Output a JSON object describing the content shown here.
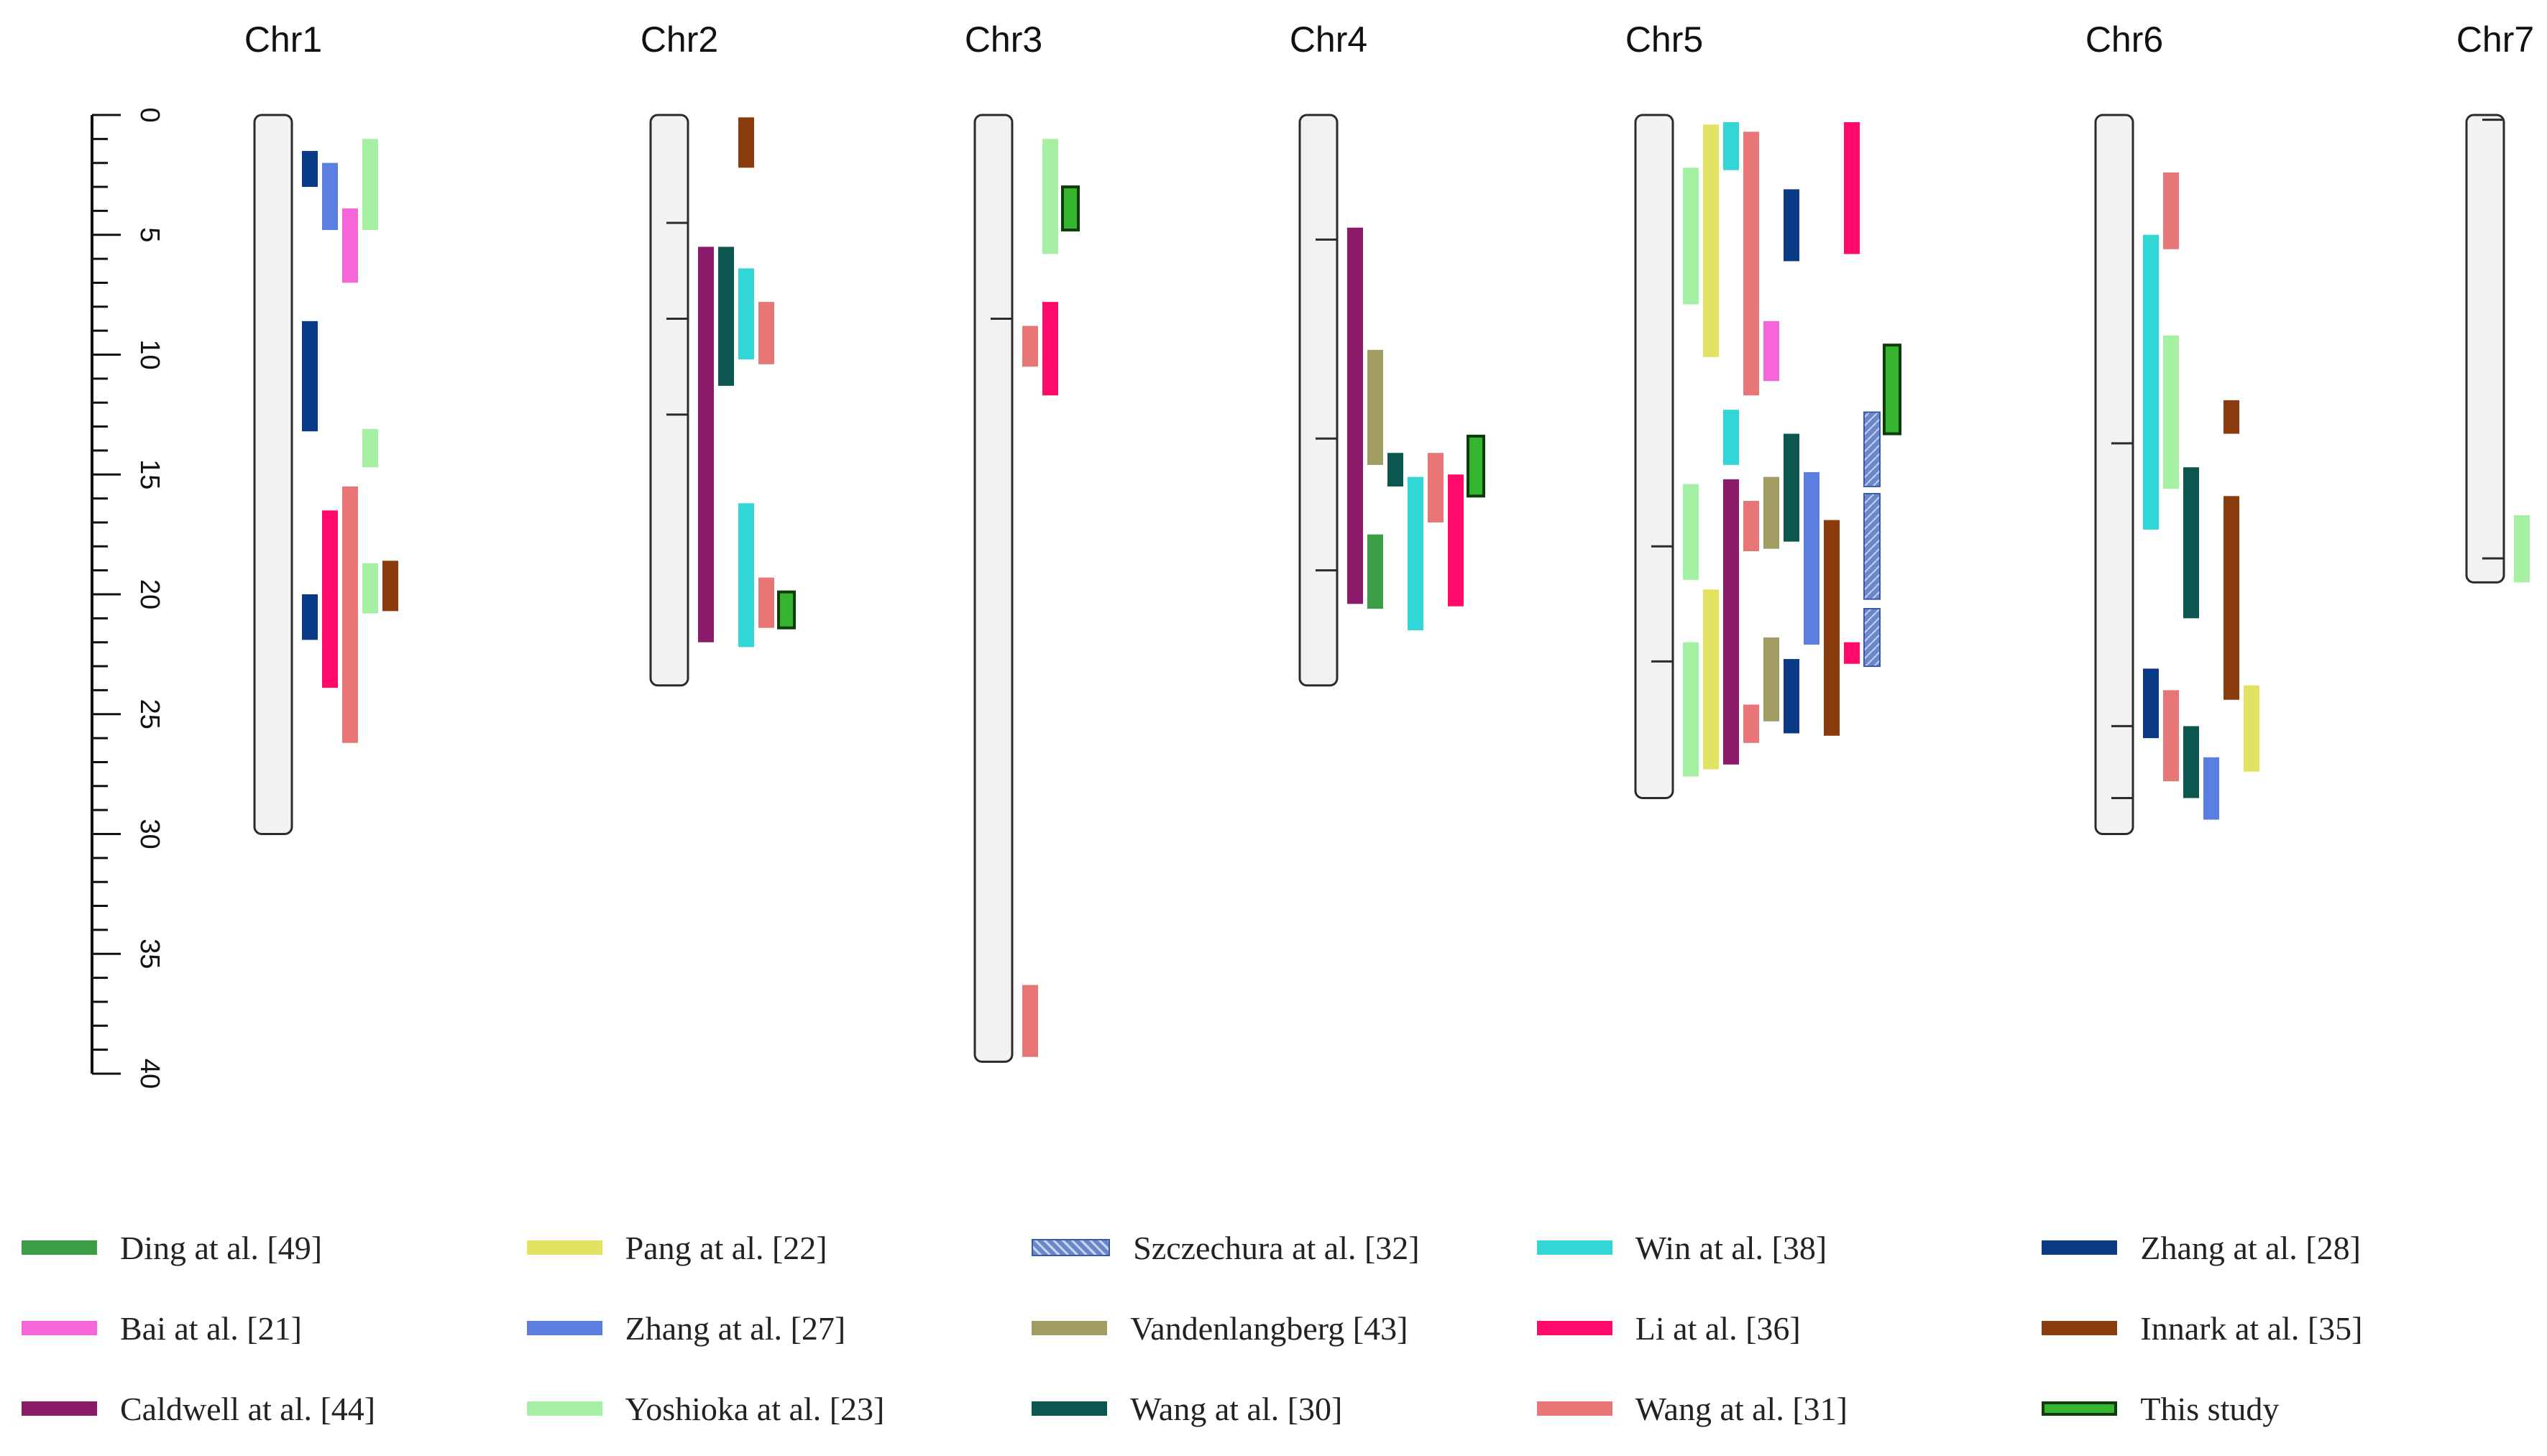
{
  "chart_data": {
    "type": "diagram",
    "title": "",
    "scale": {
      "unit": "Mb",
      "min": 0,
      "max": 40,
      "major_ticks": [
        0,
        5,
        10,
        15,
        20,
        25,
        30,
        35,
        40
      ],
      "minor_step": 1
    },
    "chromosomes": [
      {
        "name": "Chr1",
        "length": 30,
        "marks": []
      },
      {
        "name": "Chr2",
        "length": 23.8,
        "marks": [
          4.5,
          8.5,
          12.5
        ]
      },
      {
        "name": "Chr3",
        "length": 39.5,
        "marks": [
          8.5
        ]
      },
      {
        "name": "Chr4",
        "length": 23.8,
        "marks": [
          5.2,
          13.5,
          19
        ]
      },
      {
        "name": "Chr5",
        "length": 28.5,
        "marks": [
          18,
          22.8
        ]
      },
      {
        "name": "Chr6",
        "length": 30,
        "marks": [
          13.7,
          25.5,
          28.5
        ]
      },
      {
        "name": "Chr7",
        "length": 19.5,
        "marks": [
          0.2,
          18.5
        ]
      }
    ],
    "studies": [
      {
        "id": "ding",
        "label": "Ding at al. [49]",
        "color": "#3d9e48"
      },
      {
        "id": "bai",
        "label": "Bai at al. [21]",
        "color": "#f566d9"
      },
      {
        "id": "cald",
        "label": "Caldwell at al. [44]",
        "color": "#8c1a6a"
      },
      {
        "id": "pang",
        "label": "Pang at al. [22]",
        "color": "#e3e363"
      },
      {
        "id": "zh27",
        "label": "Zhang at al. [27]",
        "color": "#5b7fe0"
      },
      {
        "id": "yosh",
        "label": "Yoshioka at al. [23]",
        "color": "#a6f0a4"
      },
      {
        "id": "szcz",
        "label": "Szczechura at al. [32]",
        "color": "#6a88c9"
      },
      {
        "id": "vand",
        "label": "Vandenlangberg [43]",
        "color": "#a09c62"
      },
      {
        "id": "wang30",
        "label": "Wang at al. [30]",
        "color": "#0b574f"
      },
      {
        "id": "win",
        "label": "Win at al. [38]",
        "color": "#33d6d6"
      },
      {
        "id": "li",
        "label": "Li at al. [36]",
        "color": "#ff0a6a"
      },
      {
        "id": "wang31",
        "label": "Wang at al. [31]",
        "color": "#e87676"
      },
      {
        "id": "zh28",
        "label": "Zhang at al. [28]",
        "color": "#0a3a85"
      },
      {
        "id": "inn",
        "label": "Innark at al. [35]",
        "color": "#8a3c0d"
      },
      {
        "id": "this",
        "label": "This study",
        "color": "#35b52f"
      }
    ],
    "qtls": [
      {
        "chr": 0,
        "study": "zh28",
        "start": 1.5,
        "end": 3.0,
        "lane": 0
      },
      {
        "chr": 0,
        "study": "zh27",
        "start": 2.0,
        "end": 4.8,
        "lane": 1
      },
      {
        "chr": 0,
        "study": "bai",
        "start": 3.9,
        "end": 7.0,
        "lane": 2
      },
      {
        "chr": 0,
        "study": "yosh",
        "start": 1.0,
        "end": 4.8,
        "lane": 3
      },
      {
        "chr": 0,
        "study": "zh28",
        "start": 8.6,
        "end": 13.2,
        "lane": 0
      },
      {
        "chr": 0,
        "study": "yosh",
        "start": 13.1,
        "end": 14.7,
        "lane": 3
      },
      {
        "chr": 0,
        "study": "li",
        "start": 16.5,
        "end": 23.9,
        "lane": 1
      },
      {
        "chr": 0,
        "study": "wang31",
        "start": 15.5,
        "end": 26.2,
        "lane": 2
      },
      {
        "chr": 0,
        "study": "zh28",
        "start": 20.0,
        "end": 21.9,
        "lane": 0
      },
      {
        "chr": 0,
        "study": "yosh",
        "start": 18.7,
        "end": 20.8,
        "lane": 3
      },
      {
        "chr": 0,
        "study": "inn",
        "start": 18.6,
        "end": 20.7,
        "lane": 4
      },
      {
        "chr": 1,
        "study": "inn",
        "start": 0.1,
        "end": 2.2,
        "lane": 2
      },
      {
        "chr": 1,
        "study": "cald",
        "start": 5.5,
        "end": 22.0,
        "lane": 0
      },
      {
        "chr": 1,
        "study": "wang30",
        "start": 5.5,
        "end": 11.3,
        "lane": 1
      },
      {
        "chr": 1,
        "study": "win",
        "start": 6.4,
        "end": 10.2,
        "lane": 2
      },
      {
        "chr": 1,
        "study": "wang31",
        "start": 7.8,
        "end": 10.4,
        "lane": 3
      },
      {
        "chr": 1,
        "study": "win",
        "start": 16.2,
        "end": 22.2,
        "lane": 2
      },
      {
        "chr": 1,
        "study": "wang31",
        "start": 19.3,
        "end": 21.4,
        "lane": 3
      },
      {
        "chr": 1,
        "study": "this",
        "start": 19.9,
        "end": 21.4,
        "lane": 4
      },
      {
        "chr": 2,
        "study": "yosh",
        "start": 1.0,
        "end": 5.8,
        "lane": 1
      },
      {
        "chr": 2,
        "study": "this",
        "start": 3.0,
        "end": 4.8,
        "lane": 2
      },
      {
        "chr": 2,
        "study": "wang31",
        "start": 8.8,
        "end": 10.5,
        "lane": 0
      },
      {
        "chr": 2,
        "study": "li",
        "start": 7.8,
        "end": 11.7,
        "lane": 1
      },
      {
        "chr": 2,
        "study": "wang31",
        "start": 36.3,
        "end": 39.3,
        "lane": 0
      },
      {
        "chr": 3,
        "study": "cald",
        "start": 4.7,
        "end": 20.4,
        "lane": 0
      },
      {
        "chr": 3,
        "study": "vand",
        "start": 9.8,
        "end": 14.6,
        "lane": 1
      },
      {
        "chr": 3,
        "study": "ding",
        "start": 17.5,
        "end": 20.6,
        "lane": 1
      },
      {
        "chr": 3,
        "study": "wang30",
        "start": 14.1,
        "end": 15.5,
        "lane": 2
      },
      {
        "chr": 3,
        "study": "win",
        "start": 15.1,
        "end": 21.5,
        "lane": 3
      },
      {
        "chr": 3,
        "study": "wang31",
        "start": 14.1,
        "end": 17.0,
        "lane": 4
      },
      {
        "chr": 3,
        "study": "li",
        "start": 15.0,
        "end": 20.5,
        "lane": 5
      },
      {
        "chr": 3,
        "study": "this",
        "start": 13.4,
        "end": 15.9,
        "lane": 6
      },
      {
        "chr": 4,
        "study": "yosh",
        "start": 2.2,
        "end": 7.9,
        "lane": 0
      },
      {
        "chr": 4,
        "study": "yosh",
        "start": 15.4,
        "end": 19.4,
        "lane": 0
      },
      {
        "chr": 4,
        "study": "yosh",
        "start": 22.0,
        "end": 27.6,
        "lane": 0
      },
      {
        "chr": 4,
        "study": "pang",
        "start": 0.4,
        "end": 10.1,
        "lane": 1
      },
      {
        "chr": 4,
        "study": "pang",
        "start": 19.8,
        "end": 27.3,
        "lane": 1
      },
      {
        "chr": 4,
        "study": "win",
        "start": 0.3,
        "end": 2.3,
        "lane": 2
      },
      {
        "chr": 4,
        "study": "win",
        "start": 12.3,
        "end": 14.6,
        "lane": 2
      },
      {
        "chr": 4,
        "study": "cald",
        "start": 15.2,
        "end": 27.1,
        "lane": 2
      },
      {
        "chr": 4,
        "study": "wang31",
        "start": 0.7,
        "end": 11.7,
        "lane": 3
      },
      {
        "chr": 4,
        "study": "wang31",
        "start": 16.1,
        "end": 18.2,
        "lane": 3
      },
      {
        "chr": 4,
        "study": "wang31",
        "start": 24.6,
        "end": 26.2,
        "lane": 3
      },
      {
        "chr": 4,
        "study": "bai",
        "start": 8.6,
        "end": 11.1,
        "lane": 4
      },
      {
        "chr": 4,
        "study": "vand",
        "start": 15.1,
        "end": 18.1,
        "lane": 4
      },
      {
        "chr": 4,
        "study": "vand",
        "start": 21.8,
        "end": 25.3,
        "lane": 4
      },
      {
        "chr": 4,
        "study": "zh28",
        "start": 3.1,
        "end": 6.1,
        "lane": 5
      },
      {
        "chr": 4,
        "study": "wang30",
        "start": 13.3,
        "end": 17.8,
        "lane": 5
      },
      {
        "chr": 4,
        "study": "zh28",
        "start": 22.7,
        "end": 25.8,
        "lane": 5
      },
      {
        "chr": 4,
        "study": "zh27",
        "start": 14.9,
        "end": 22.1,
        "lane": 6
      },
      {
        "chr": 4,
        "study": "inn",
        "start": 16.9,
        "end": 25.9,
        "lane": 7
      },
      {
        "chr": 4,
        "study": "li",
        "start": 0.3,
        "end": 5.8,
        "lane": 8
      },
      {
        "chr": 4,
        "study": "li",
        "start": 22.0,
        "end": 22.9,
        "lane": 8
      },
      {
        "chr": 4,
        "study": "szcz",
        "start": 12.4,
        "end": 15.5,
        "lane": 9
      },
      {
        "chr": 4,
        "study": "szcz",
        "start": 15.8,
        "end": 20.2,
        "lane": 9
      },
      {
        "chr": 4,
        "study": "szcz",
        "start": 20.6,
        "end": 23.0,
        "lane": 9
      },
      {
        "chr": 4,
        "study": "this",
        "start": 9.6,
        "end": 13.3,
        "lane": 10
      },
      {
        "chr": 5,
        "study": "win",
        "start": 5.0,
        "end": 17.3,
        "lane": 0
      },
      {
        "chr": 5,
        "study": "zh28",
        "start": 23.1,
        "end": 26.0,
        "lane": 0
      },
      {
        "chr": 5,
        "study": "wang31",
        "start": 2.4,
        "end": 5.6,
        "lane": 1
      },
      {
        "chr": 5,
        "study": "yosh",
        "start": 9.2,
        "end": 15.6,
        "lane": 1
      },
      {
        "chr": 5,
        "study": "wang31",
        "start": 24.0,
        "end": 27.8,
        "lane": 1
      },
      {
        "chr": 5,
        "study": "wang30",
        "start": 14.7,
        "end": 21.0,
        "lane": 2
      },
      {
        "chr": 5,
        "study": "wang30",
        "start": 25.5,
        "end": 28.5,
        "lane": 2
      },
      {
        "chr": 5,
        "study": "zh27",
        "start": 26.8,
        "end": 29.4,
        "lane": 3
      },
      {
        "chr": 5,
        "study": "inn",
        "start": 11.9,
        "end": 13.3,
        "lane": 4
      },
      {
        "chr": 5,
        "study": "inn",
        "start": 15.9,
        "end": 24.4,
        "lane": 4
      },
      {
        "chr": 5,
        "study": "pang",
        "start": 23.8,
        "end": 27.4,
        "lane": 5
      },
      {
        "chr": 6,
        "study": "yosh",
        "start": 16.7,
        "end": 19.5,
        "lane": 0
      }
    ]
  },
  "legend": [
    {
      "label": "Ding at al. [49]",
      "color": "#3d9e48",
      "style": "solid"
    },
    {
      "label": "Bai at al. [21]",
      "color": "#f566d9",
      "style": "solid"
    },
    {
      "label": "Caldwell at al. [44]",
      "color": "#8c1a6a",
      "style": "solid"
    },
    {
      "label": "Pang at al. [22]",
      "color": "#e3e363",
      "style": "solid"
    },
    {
      "label": "Zhang at al. [27]",
      "color": "#5b7fe0",
      "style": "solid"
    },
    {
      "label": "Yoshioka at al. [23]",
      "color": "#a6f0a4",
      "style": "solid"
    },
    {
      "label": "Szczechura at al. [32]",
      "color": "#6a88c9",
      "style": "pattern"
    },
    {
      "label": "Vandenlangberg [43]",
      "color": "#a09c62",
      "style": "solid"
    },
    {
      "label": "Wang at al. [30]",
      "color": "#0b574f",
      "style": "solid"
    },
    {
      "label": "Win at al. [38]",
      "color": "#33d6d6",
      "style": "solid"
    },
    {
      "label": "Li at al. [36]",
      "color": "#ff0a6a",
      "style": "solid"
    },
    {
      "label": "Wang at al. [31]",
      "color": "#e87676",
      "style": "solid"
    },
    {
      "label": "Zhang at al. [28]",
      "color": "#0a3a85",
      "style": "solid"
    },
    {
      "label": "Innark at al. [35]",
      "color": "#8a3c0d",
      "style": "solid"
    },
    {
      "label": "This study",
      "color": "#35b52f",
      "style": "outlined"
    }
  ]
}
